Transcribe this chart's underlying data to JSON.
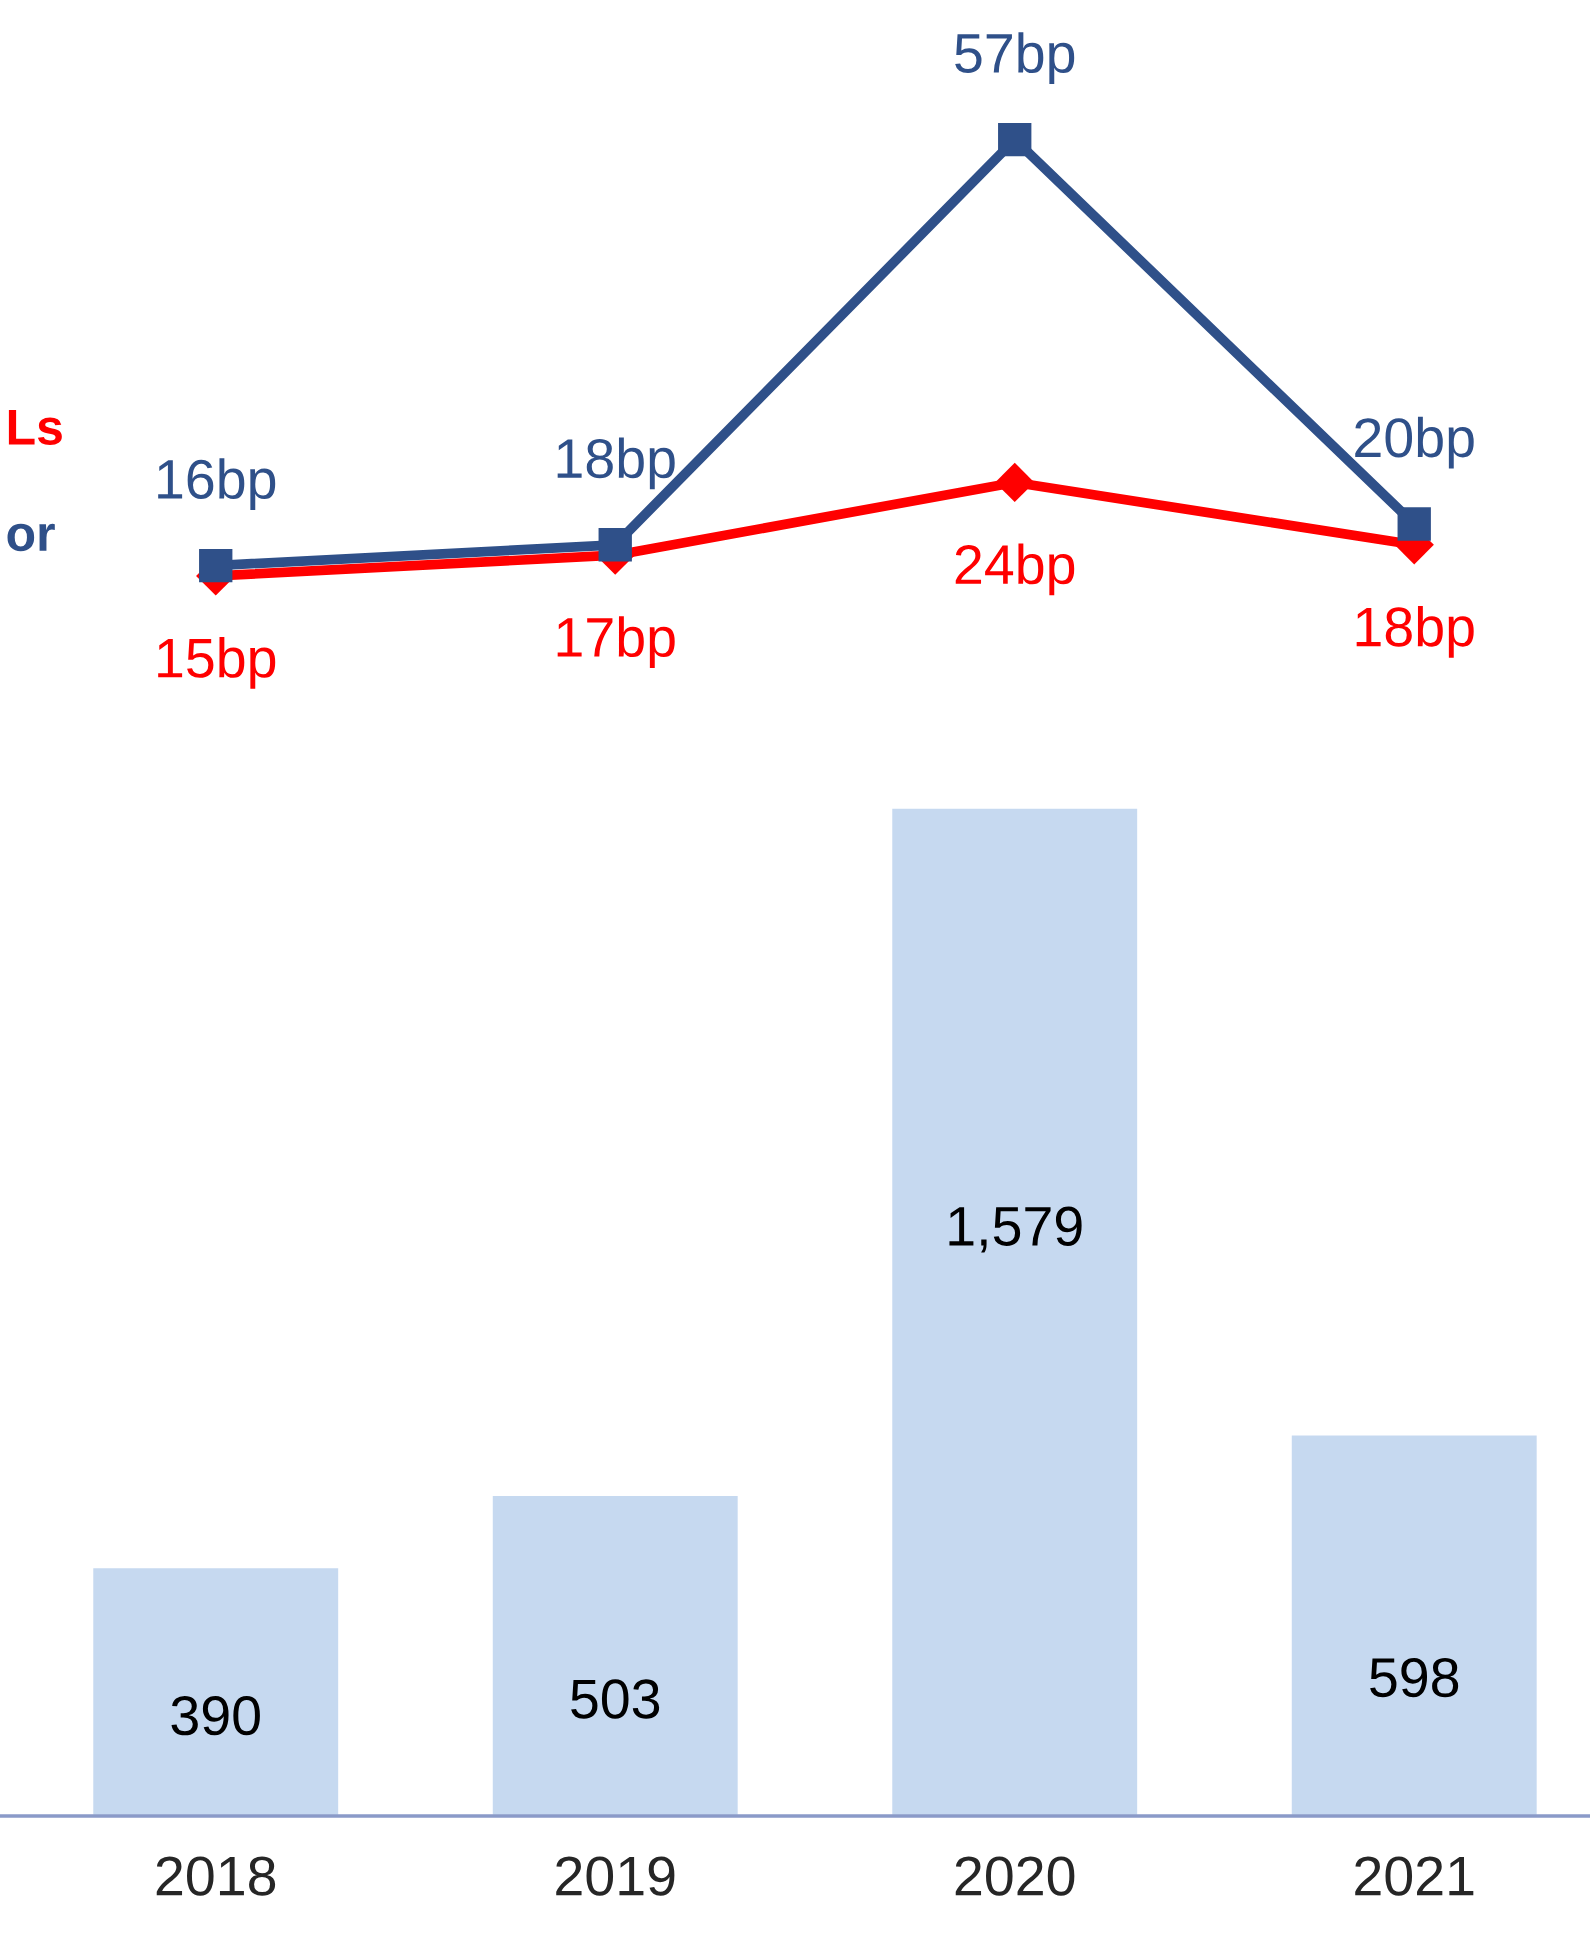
{
  "chart_data": [
    {
      "type": "line",
      "categories": [
        "2018",
        "2019",
        "2020",
        "2021"
      ],
      "tick_labels": false,
      "grid": false,
      "legend": false,
      "series": [
        {
          "name": "Ls",
          "color": "#ff0000",
          "marker": "diamond",
          "values": [
            15,
            17,
            24,
            18
          ],
          "value_labels": [
            "15bp",
            "17bp",
            "24bp",
            "18bp"
          ]
        },
        {
          "name": "or",
          "color": "#2f5089",
          "marker": "square",
          "values": [
            16,
            18,
            57,
            20
          ],
          "value_labels": [
            "16bp",
            "18bp",
            "57bp",
            "20bp"
          ]
        }
      ]
    },
    {
      "type": "bar",
      "categories": [
        "2018",
        "2019",
        "2020",
        "2021"
      ],
      "tick_labels": "x",
      "grid": false,
      "legend": false,
      "series": [
        {
          "color": "#c6d9f0",
          "values": [
            390,
            503,
            1579,
            598
          ],
          "value_labels": [
            "390",
            "503",
            "1,579",
            "598"
          ]
        }
      ]
    }
  ]
}
